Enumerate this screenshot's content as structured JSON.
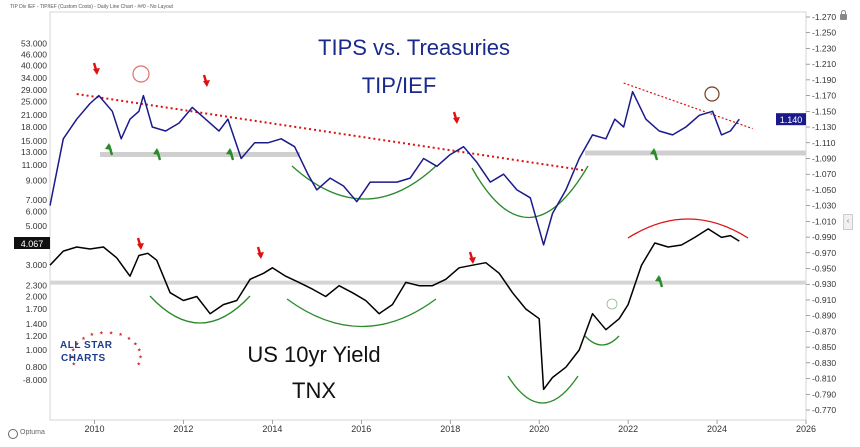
{
  "header": {
    "caption": "TIP Div IEF - TIP/IEF (Custom Costs) - Daily Line Chart - ##0 - No Layout"
  },
  "footer": {
    "brand": "Optuma"
  },
  "logo": {
    "line1": "ALL STAR",
    "line2": "CHARTS"
  },
  "chart_data": [
    {
      "type": "line",
      "title": "TIPS vs. Treasuries",
      "subtitle": "TIP/IEF",
      "y_axis_side": "right",
      "right_ticks": [
        "1.270",
        "1.250",
        "1.230",
        "1.210",
        "1.190",
        "1.170",
        "1.150",
        "1.130",
        "1.110",
        "1.090",
        "1.070",
        "1.050",
        "1.030",
        "1.010",
        "0.990",
        "0.970",
        "0.950",
        "0.930",
        "0.910",
        "0.890",
        "0.870",
        "0.850",
        "0.830",
        "0.810",
        "0.790",
        "0.770"
      ],
      "current_value_label": "1.140",
      "x_ticks": [
        "2010",
        "2012",
        "2014",
        "2016",
        "2018",
        "2020",
        "2022",
        "2024",
        "2026"
      ],
      "series": [
        {
          "color": "#1a1a8c",
          "x": [
            2009.0,
            2009.3,
            2009.6,
            2009.9,
            2010.1,
            2010.4,
            2010.6,
            2010.8,
            2011.0,
            2011.1,
            2011.3,
            2011.6,
            2011.9,
            2012.2,
            2012.5,
            2012.8,
            2013.0,
            2013.3,
            2013.6,
            2013.9,
            2014.2,
            2014.5,
            2014.8,
            2015.0,
            2015.3,
            2015.6,
            2015.9,
            2016.2,
            2016.5,
            2016.8,
            2017.1,
            2017.4,
            2017.7,
            2018.0,
            2018.3,
            2018.6,
            2018.9,
            2019.2,
            2019.5,
            2019.8,
            2020.0,
            2020.1,
            2020.3,
            2020.6,
            2020.9,
            2021.2,
            2021.5,
            2021.7,
            2021.9,
            2022.1,
            2022.4,
            2022.7,
            2023.0,
            2023.3,
            2023.6,
            2023.9,
            2024.1,
            2024.3,
            2024.5
          ],
          "values": [
            1.03,
            1.115,
            1.14,
            1.16,
            1.17,
            1.15,
            1.115,
            1.14,
            1.15,
            1.17,
            1.13,
            1.125,
            1.135,
            1.155,
            1.14,
            1.125,
            1.14,
            1.09,
            1.11,
            1.11,
            1.115,
            1.105,
            1.07,
            1.05,
            1.065,
            1.055,
            1.035,
            1.06,
            1.06,
            1.06,
            1.065,
            1.09,
            1.08,
            1.095,
            1.105,
            1.085,
            1.06,
            1.07,
            1.05,
            1.04,
            1.0,
            0.98,
            1.02,
            1.05,
            1.09,
            1.12,
            1.115,
            1.14,
            1.13,
            1.175,
            1.14,
            1.125,
            1.12,
            1.13,
            1.145,
            1.15,
            1.12,
            1.125,
            1.14
          ]
        }
      ],
      "annotations": [
        "descending trendline (red dotted)",
        "horizontal support (grey)",
        "green rounding arcs",
        "red arrows at highs",
        "green arrows at lows"
      ]
    },
    {
      "type": "line",
      "title": "US 10yr Yield",
      "subtitle": "TNX",
      "y_axis_side": "left",
      "left_ticks": [
        "53.000",
        "46.000",
        "40.000",
        "34.000",
        "29.000",
        "25.000",
        "21.000",
        "18.000",
        "15.000",
        "13.000",
        "11.000",
        "9.000",
        "7.000",
        "6.000",
        "5.000",
        "4.000",
        "3.000",
        "2.300",
        "2.000",
        "1.700",
        "1.400",
        "1.200",
        "1.000",
        "0.800",
        "-8.000"
      ],
      "current_value_label": "4.067",
      "x_ticks": [
        "2010",
        "2012",
        "2014",
        "2016",
        "2018",
        "2020",
        "2022",
        "2024",
        "2026"
      ],
      "series": [
        {
          "color": "#000000",
          "x": [
            2009.0,
            2009.3,
            2009.6,
            2009.9,
            2010.2,
            2010.5,
            2010.8,
            2011.0,
            2011.2,
            2011.4,
            2011.7,
            2012.0,
            2012.3,
            2012.6,
            2012.9,
            2013.2,
            2013.5,
            2013.8,
            2014.0,
            2014.3,
            2014.6,
            2014.9,
            2015.2,
            2015.5,
            2015.8,
            2016.1,
            2016.4,
            2016.7,
            2017.0,
            2017.3,
            2017.6,
            2017.9,
            2018.2,
            2018.5,
            2018.8,
            2019.1,
            2019.4,
            2019.7,
            2020.0,
            2020.1,
            2020.3,
            2020.6,
            2020.9,
            2021.2,
            2021.5,
            2021.8,
            2022.0,
            2022.3,
            2022.6,
            2022.9,
            2023.2,
            2023.5,
            2023.8,
            2024.1,
            2024.3,
            2024.5
          ],
          "values": [
            3.0,
            3.6,
            3.8,
            3.7,
            3.8,
            3.3,
            2.6,
            3.4,
            3.5,
            3.2,
            2.1,
            1.9,
            2.0,
            1.6,
            1.8,
            1.9,
            2.5,
            2.7,
            2.9,
            2.6,
            2.4,
            2.2,
            2.0,
            2.3,
            2.1,
            1.9,
            1.6,
            1.8,
            2.4,
            2.3,
            2.3,
            2.5,
            2.9,
            3.0,
            3.1,
            2.7,
            2.1,
            1.7,
            1.5,
            0.6,
            0.7,
            0.8,
            1.0,
            1.6,
            1.3,
            1.5,
            1.8,
            3.0,
            4.0,
            3.8,
            3.9,
            4.3,
            4.8,
            4.3,
            4.4,
            4.1
          ]
        }
      ],
      "annotations": [
        "horizontal resistance (grey)",
        "green rounding arcs",
        "red arc at top",
        "red arrows at highs"
      ]
    }
  ]
}
